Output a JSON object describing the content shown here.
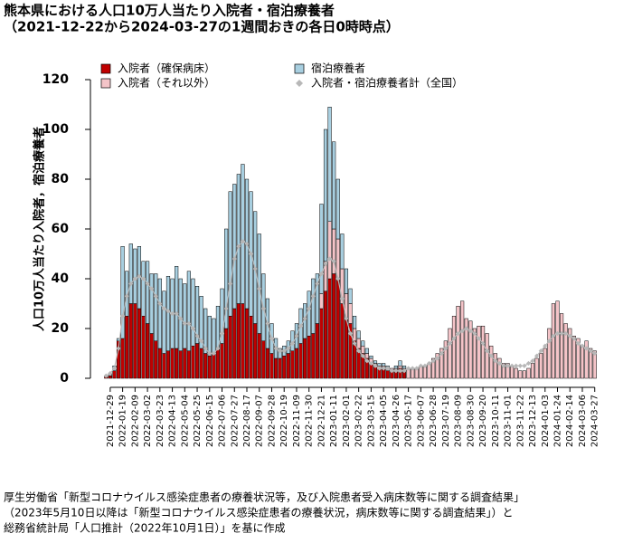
{
  "chart_data": {
    "type": "bar",
    "stacked": true,
    "title": "熊本県における人口10万人当たり入院者・宿泊療養者",
    "subtitle": "（2021-12-22から2024-03-27の1週間おきの各日0時時点）",
    "y_label": "人口10万人当たり入院者，宿泊療養者",
    "notes": [
      "厚生労働省「新型コロナウイルス感染症患者の療養状況等，及び入院患者受入病床数等に関する調査結果」",
      "（2023年5月10日以降は「新型コロナウイルス感染症患者の療養状況，病床数等に関する調査結果」）と",
      "総務省統計局「人口推計（2022年10月1日）」を基に作成"
    ],
    "ylim": [
      0,
      120
    ],
    "yticks": [
      0,
      20,
      40,
      60,
      80,
      100,
      120
    ],
    "categories": [
      null,
      "2021-12-29",
      null,
      null,
      "2022-01-19",
      null,
      null,
      "2022-02-09",
      null,
      null,
      "2022-03-02",
      null,
      null,
      "2022-03-23",
      null,
      null,
      "2022-04-13",
      null,
      null,
      "2022-05-04",
      null,
      null,
      "2022-05-25",
      null,
      null,
      "2022-06-15",
      null,
      null,
      "2022-07-06",
      null,
      null,
      "2022-07-27",
      null,
      null,
      "2022-08-17",
      null,
      null,
      "2022-09-07",
      null,
      null,
      "2022-09-28",
      null,
      null,
      "2022-10-19",
      null,
      null,
      "2022-11-09",
      null,
      null,
      "2022-11-30",
      null,
      null,
      "2022-12-21",
      null,
      null,
      "2023-01-11",
      null,
      null,
      "2023-02-01",
      null,
      null,
      "2023-02-22",
      null,
      null,
      "2023-03-15",
      null,
      null,
      "2023-04-05",
      null,
      null,
      "2023-04-26",
      null,
      null,
      "2023-05-17",
      null,
      null,
      "2023-06-07",
      null,
      null,
      "2023-06-28",
      null,
      null,
      "2023-07-19",
      null,
      null,
      "2023-08-09",
      null,
      null,
      "2023-08-30",
      null,
      null,
      "2023-09-20",
      null,
      null,
      "2023-10-11",
      null,
      null,
      "2023-11-01",
      null,
      null,
      "2023-11-22",
      null,
      null,
      "2023-12-13",
      null,
      null,
      "2024-01-03",
      null,
      null,
      "2024-01-24",
      null,
      null,
      "2024-02-14",
      null,
      null,
      "2024-03-06",
      null,
      null,
      "2024-03-27"
    ],
    "series": [
      {
        "name": "入院者（確保病床）",
        "color": "#c00000",
        "values": [
          1,
          1,
          3,
          15,
          16,
          25,
          30,
          30,
          28,
          25,
          22,
          18,
          15,
          12,
          10,
          11,
          12,
          12,
          11,
          12,
          11,
          13,
          14,
          12,
          10,
          9,
          10,
          12,
          14,
          20,
          25,
          28,
          30,
          30,
          28,
          25,
          22,
          18,
          15,
          12,
          10,
          8,
          8,
          9,
          10,
          11,
          12,
          14,
          16,
          17,
          18,
          22,
          28,
          35,
          40,
          42,
          40,
          30,
          24,
          22,
          15,
          12,
          10,
          8,
          6,
          5,
          4,
          4,
          3,
          3,
          3,
          4,
          3,
          null,
          null,
          null,
          null,
          null,
          null,
          null,
          null,
          null,
          null,
          null,
          null,
          null,
          null,
          null,
          null,
          null,
          null,
          null,
          null,
          null,
          null,
          null,
          null,
          null,
          null,
          null,
          null,
          null,
          null,
          null,
          null,
          null,
          null,
          null,
          null,
          null,
          null,
          null,
          null,
          null,
          null,
          null,
          null,
          null,
          null
        ]
      },
      {
        "name": "入院者（それ以外）",
        "color": "#f4c4c8",
        "values": [
          null,
          null,
          null,
          null,
          null,
          null,
          null,
          null,
          null,
          null,
          null,
          null,
          null,
          null,
          null,
          null,
          null,
          null,
          null,
          null,
          null,
          null,
          null,
          null,
          null,
          null,
          null,
          null,
          null,
          null,
          null,
          null,
          null,
          null,
          null,
          null,
          null,
          null,
          null,
          null,
          null,
          null,
          null,
          null,
          null,
          null,
          null,
          null,
          null,
          null,
          null,
          null,
          6,
          12,
          23,
          18,
          16,
          14,
          10,
          8,
          5,
          4,
          3,
          2,
          2,
          1,
          1,
          1,
          1,
          1,
          1,
          1,
          1,
          4,
          4,
          4,
          5,
          5,
          6,
          8,
          10,
          12,
          15,
          20,
          25,
          29,
          31,
          24,
          23,
          20,
          21,
          21,
          18,
          13,
          10,
          8,
          6,
          6,
          5,
          4,
          3,
          3,
          4,
          6,
          8,
          10,
          12,
          20,
          30,
          31,
          26,
          22,
          20,
          17,
          16,
          13,
          15,
          12,
          11
        ]
      },
      {
        "name": "宿泊療養者",
        "color": "#a8cfe0",
        "values": [
          0,
          1,
          2,
          1,
          37,
          18,
          24,
          22,
          25,
          22,
          25,
          24,
          27,
          28,
          25,
          30,
          28,
          33,
          29,
          26,
          32,
          27,
          23,
          21,
          18,
          16,
          14,
          17,
          22,
          40,
          50,
          50,
          52,
          56,
          52,
          50,
          45,
          40,
          27,
          20,
          12,
          8,
          4,
          4,
          5,
          8,
          10,
          14,
          14,
          18,
          22,
          20,
          36,
          53,
          46,
          35,
          24,
          14,
          10,
          6,
          5,
          3,
          2,
          2,
          1,
          1,
          1,
          1,
          1,
          0,
          1,
          2,
          1,
          null,
          null,
          null,
          null,
          null,
          null,
          null,
          null,
          null,
          null,
          null,
          null,
          null,
          null,
          null,
          null,
          null,
          null,
          null,
          null,
          null,
          null,
          null,
          null,
          null,
          null,
          null,
          null,
          null,
          null,
          null,
          null,
          null,
          null,
          null,
          null,
          null,
          null,
          null,
          null,
          null,
          null,
          null,
          null,
          null,
          null
        ]
      },
      {
        "name": "入院者・宿泊療養者計（全国）",
        "color": "#b8b8b8",
        "type": "line",
        "values": [
          1,
          2,
          4,
          12,
          25,
          33,
          38,
          40,
          41,
          40,
          38,
          36,
          33,
          30,
          28,
          27,
          26,
          26,
          24,
          22,
          22,
          20,
          17,
          15,
          12,
          10,
          10,
          12,
          18,
          28,
          38,
          48,
          53,
          55,
          54,
          50,
          44,
          36,
          28,
          22,
          16,
          12,
          11,
          11,
          12,
          14,
          17,
          21,
          24,
          28,
          33,
          38,
          42,
          46,
          48,
          47,
          40,
          32,
          24,
          18,
          14,
          11,
          9,
          7,
          6,
          5,
          4,
          4,
          4,
          3,
          3,
          3,
          3,
          4,
          4,
          4,
          5,
          5,
          6,
          7,
          8,
          10,
          12,
          14,
          16,
          18,
          19,
          20,
          19,
          18,
          16,
          14,
          11,
          9,
          7,
          6,
          5,
          5,
          5,
          5,
          5,
          5,
          6,
          7,
          9,
          11,
          13,
          15,
          17,
          18,
          18,
          18,
          17,
          16,
          14,
          13,
          12,
          11,
          10
        ]
      }
    ]
  }
}
